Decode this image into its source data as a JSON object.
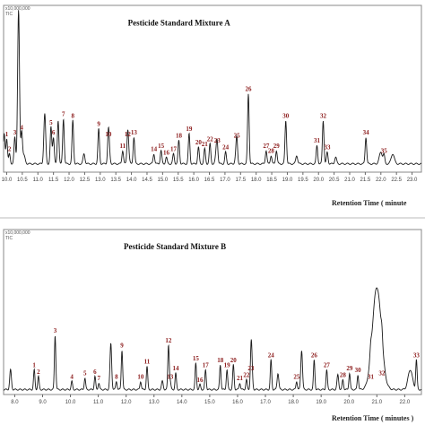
{
  "chart_data": [
    {
      "type": "line",
      "title": "Pesticide Standard Mixture A",
      "xlabel": "Retention Time ( minute",
      "y_scale_label": "x10,000,000",
      "y_axis_tag": "TIC",
      "x_ticks": [
        "10.0",
        "10.5",
        "11.0",
        "11.5",
        "12.0",
        "12.5",
        "13.0",
        "13.5",
        "14.0",
        "14.5",
        "15.0",
        "15.5",
        "16.0",
        "16.5",
        "17.0",
        "17.5",
        "18.0",
        "18.5",
        "19.0",
        "19.5",
        "20.0",
        "20.5",
        "21.0",
        "21.5",
        "22.0",
        "22.5",
        "23.0"
      ],
      "xlim": [
        9.9,
        23.3
      ],
      "ylim": [
        0,
        1.0
      ],
      "baseline": 0.05,
      "peaks": [
        {
          "t": 9.92,
          "h": 0.18,
          "w": 0.025
        },
        {
          "t": 10.38,
          "h": 0.92,
          "w": 0.03
        },
        {
          "t": 10.55,
          "h": 0.05,
          "w": 0.04
        },
        {
          "t": 11.22,
          "h": 0.3,
          "w": 0.03
        },
        {
          "t": 11.65,
          "h": 0.26,
          "w": 0.025
        },
        {
          "t": 12.48,
          "h": 0.06,
          "w": 0.03
        },
        {
          "t": 13.28,
          "h": 0.08,
          "w": 0.03
        },
        {
          "t": 13.9,
          "h": 0.07,
          "w": 0.03
        },
        {
          "t": 16.72,
          "h": 0.06,
          "w": 0.03
        },
        {
          "t": 17.35,
          "h": 0.04,
          "w": 0.03
        },
        {
          "t": 19.3,
          "h": 0.05,
          "w": 0.03
        },
        {
          "t": 20.55,
          "h": 0.04,
          "w": 0.03
        },
        {
          "t": 22.0,
          "h": 0.07,
          "w": 0.05
        },
        {
          "t": 22.38,
          "h": 0.06,
          "w": 0.05
        }
      ],
      "labeled_peaks": [
        {
          "id": "1",
          "t": 10.0,
          "h": 0.15
        },
        {
          "id": "2",
          "t": 10.09,
          "h": 0.06
        },
        {
          "id": "3",
          "t": 10.26,
          "h": 0.16
        },
        {
          "id": "4",
          "t": 10.48,
          "h": 0.19
        },
        {
          "id": "5",
          "t": 11.42,
          "h": 0.22
        },
        {
          "id": "6",
          "t": 11.5,
          "h": 0.16
        },
        {
          "id": "7",
          "t": 11.82,
          "h": 0.27
        },
        {
          "id": "8",
          "t": 12.12,
          "h": 0.26
        },
        {
          "id": "9",
          "t": 12.95,
          "h": 0.21
        },
        {
          "id": "10",
          "t": 13.26,
          "h": 0.15
        },
        {
          "id": "11",
          "t": 13.72,
          "h": 0.08
        },
        {
          "id": "12",
          "t": 13.88,
          "h": 0.15
        },
        {
          "id": "13",
          "t": 14.08,
          "h": 0.16
        },
        {
          "id": "14",
          "t": 14.72,
          "h": 0.06
        },
        {
          "id": "15",
          "t": 14.95,
          "h": 0.08
        },
        {
          "id": "16",
          "t": 15.12,
          "h": 0.04
        },
        {
          "id": "17",
          "t": 15.35,
          "h": 0.06
        },
        {
          "id": "18",
          "t": 15.52,
          "h": 0.14
        },
        {
          "id": "19",
          "t": 15.85,
          "h": 0.18
        },
        {
          "id": "20",
          "t": 16.15,
          "h": 0.1
        },
        {
          "id": "21",
          "t": 16.35,
          "h": 0.09
        },
        {
          "id": "22",
          "t": 16.52,
          "h": 0.12
        },
        {
          "id": "23",
          "t": 16.75,
          "h": 0.11
        },
        {
          "id": "24",
          "t": 17.02,
          "h": 0.07
        },
        {
          "id": "25",
          "t": 17.38,
          "h": 0.14
        },
        {
          "id": "26",
          "t": 17.75,
          "h": 0.42
        },
        {
          "id": "27",
          "t": 18.32,
          "h": 0.08
        },
        {
          "id": "28",
          "t": 18.48,
          "h": 0.05
        },
        {
          "id": "29",
          "t": 18.65,
          "h": 0.08
        },
        {
          "id": "30",
          "t": 18.95,
          "h": 0.26
        },
        {
          "id": "31",
          "t": 19.95,
          "h": 0.11
        },
        {
          "id": "32",
          "t": 20.15,
          "h": 0.26
        },
        {
          "id": "33",
          "t": 20.28,
          "h": 0.07
        },
        {
          "id": "34",
          "t": 21.52,
          "h": 0.16
        },
        {
          "id": "35",
          "t": 22.1,
          "h": 0.05
        }
      ]
    },
    {
      "type": "line",
      "title": "Pesticide Standard Mixture B",
      "xlabel": "Retention Time ( minutes )",
      "y_scale_label": "x10,000,000",
      "y_axis_tag": "TIC",
      "x_ticks": [
        "8.0",
        "9.0",
        "10.0",
        "11.0",
        "12.0",
        "13.0",
        "14.0",
        "15.0",
        "16.0",
        "17.0",
        "18.0",
        "19.0",
        "20.0",
        "21.0",
        "22.0"
      ],
      "xlim": [
        7.6,
        22.6
      ],
      "ylim": [
        0,
        1.0
      ],
      "baseline": 0.03,
      "peaks": [
        {
          "t": 7.85,
          "h": 0.12,
          "w": 0.03
        },
        {
          "t": 11.45,
          "h": 0.28,
          "w": 0.03
        },
        {
          "t": 13.3,
          "h": 0.05,
          "w": 0.03
        },
        {
          "t": 16.5,
          "h": 0.22,
          "w": 0.03
        },
        {
          "t": 17.45,
          "h": 0.1,
          "w": 0.03
        },
        {
          "t": 18.3,
          "h": 0.24,
          "w": 0.03
        },
        {
          "t": 19.6,
          "h": 0.09,
          "w": 0.03
        },
        {
          "t": 21.0,
          "h": 0.62,
          "w": 0.16
        },
        {
          "t": 22.2,
          "h": 0.12,
          "w": 0.08
        }
      ],
      "labeled_peaks": [
        {
          "id": "1",
          "t": 8.7,
          "h": 0.12
        },
        {
          "id": "2",
          "t": 8.85,
          "h": 0.08
        },
        {
          "id": "3",
          "t": 9.45,
          "h": 0.33
        },
        {
          "id": "4",
          "t": 10.05,
          "h": 0.05
        },
        {
          "id": "5",
          "t": 10.52,
          "h": 0.07
        },
        {
          "id": "6",
          "t": 10.88,
          "h": 0.08
        },
        {
          "id": "7",
          "t": 11.02,
          "h": 0.04
        },
        {
          "id": "8",
          "t": 11.65,
          "h": 0.05
        },
        {
          "id": "9",
          "t": 11.85,
          "h": 0.24
        },
        {
          "id": "10",
          "t": 12.52,
          "h": 0.05
        },
        {
          "id": "11",
          "t": 12.75,
          "h": 0.14
        },
        {
          "id": "12",
          "t": 13.52,
          "h": 0.27
        },
        {
          "id": "13",
          "t": 13.58,
          "h": 0.05
        },
        {
          "id": "14",
          "t": 13.78,
          "h": 0.1
        },
        {
          "id": "15",
          "t": 14.5,
          "h": 0.16
        },
        {
          "id": "16",
          "t": 14.65,
          "h": 0.03
        },
        {
          "id": "17",
          "t": 14.85,
          "h": 0.12
        },
        {
          "id": "18",
          "t": 15.38,
          "h": 0.15
        },
        {
          "id": "19",
          "t": 15.62,
          "h": 0.12
        },
        {
          "id": "20",
          "t": 15.85,
          "h": 0.15
        },
        {
          "id": "21",
          "t": 16.08,
          "h": 0.04
        },
        {
          "id": "22",
          "t": 16.32,
          "h": 0.06
        },
        {
          "id": "23",
          "t": 16.48,
          "h": 0.1
        },
        {
          "id": "24",
          "t": 17.2,
          "h": 0.18
        },
        {
          "id": "25",
          "t": 18.12,
          "h": 0.05
        },
        {
          "id": "26",
          "t": 18.75,
          "h": 0.18
        },
        {
          "id": "27",
          "t": 19.2,
          "h": 0.12
        },
        {
          "id": "28",
          "t": 19.78,
          "h": 0.06
        },
        {
          "id": "29",
          "t": 20.02,
          "h": 0.1
        },
        {
          "id": "30",
          "t": 20.32,
          "h": 0.09
        },
        {
          "id": "31",
          "t": 20.78,
          "h": 0.05
        },
        {
          "id": "32",
          "t": 21.18,
          "h": 0.07
        },
        {
          "id": "33",
          "t": 22.42,
          "h": 0.18
        }
      ]
    }
  ]
}
